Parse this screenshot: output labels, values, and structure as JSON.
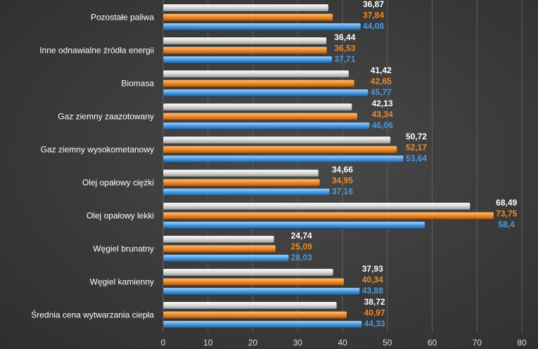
{
  "chart_data": {
    "type": "bar",
    "orientation": "horizontal",
    "title": "",
    "xlabel": "",
    "ylabel": "",
    "categories": [
      "Pozostałe paliwa",
      "Inne odnawialne źródła energii",
      "Biomasa",
      "Gaz ziemny zaazotowany",
      "Gaz ziemny wysokometanowy",
      "Olej opałowy ciężki",
      "Olej opałowy lekki",
      "Węgiel brunatny",
      "Węgiel kamienny",
      "Średnia cena wytwarzania ciepła"
    ],
    "series": [
      {
        "color": "#ffffff",
        "values": [
          36.87,
          36.44,
          41.42,
          42.13,
          50.72,
          34.66,
          68.49,
          24.74,
          37.93,
          38.72
        ],
        "labels": [
          "36,87",
          "36,44",
          "41,42",
          "42,13",
          "50,72",
          "34,66",
          "68,49",
          "24,74",
          "37,93",
          "38,72"
        ]
      },
      {
        "color": "#f08a2a",
        "values": [
          37.84,
          36.53,
          42.65,
          43.34,
          52.17,
          34.95,
          73.75,
          25.09,
          40.34,
          40.97
        ],
        "labels": [
          "37,84",
          "36,53",
          "42,65",
          "43,34",
          "52,17",
          "34,95",
          "73,75",
          "25,09",
          "40,34",
          "40,97"
        ]
      },
      {
        "color": "#4a9be0",
        "values": [
          44.08,
          37.71,
          45.77,
          46.06,
          53.64,
          37.16,
          58.4,
          28.03,
          43.88,
          44.33
        ],
        "labels": [
          "44,08",
          "37,71",
          "45,77",
          "46,06",
          "53,64",
          "37,16",
          "58,4",
          "28,03",
          "43,88",
          "44,33"
        ]
      }
    ],
    "label_colors": [
      "#ffffff",
      "#f08a2a",
      "#4a9be0"
    ],
    "xlim": [
      0,
      80
    ],
    "xticks": [
      "0",
      "10",
      "20",
      "30",
      "40",
      "50",
      "60",
      "70",
      "80"
    ],
    "grid": true,
    "legend": "none"
  }
}
